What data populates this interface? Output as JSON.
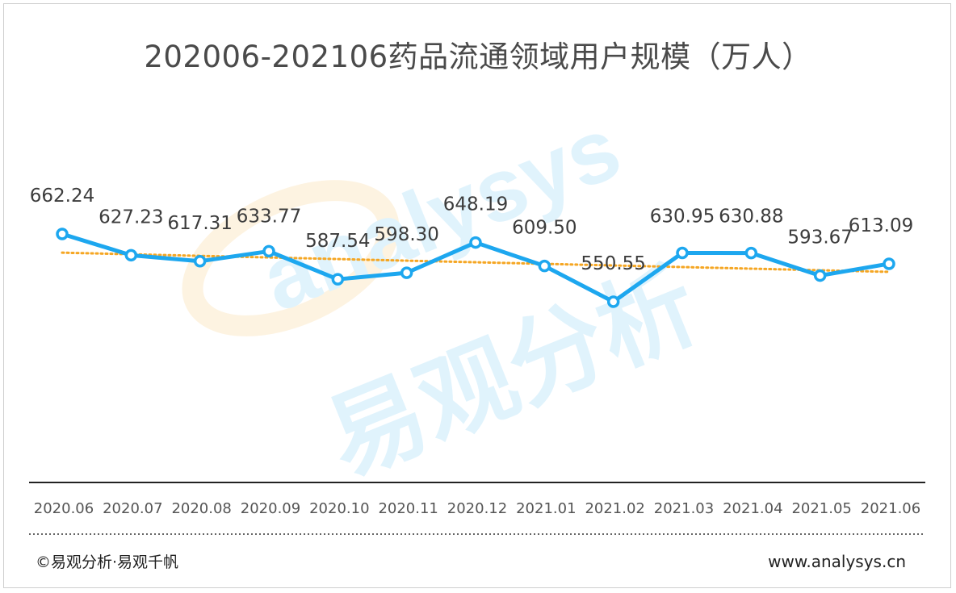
{
  "title": "202006-202106药品流通领域用户规模（万人）",
  "footer": {
    "copyright": "©易观分析·易观千帆",
    "website": "www.analysys.cn"
  },
  "watermark": {
    "logo_text": "analysys",
    "cn_text": "易观分析"
  },
  "colors": {
    "line": "#1da7ef",
    "trend": "#f5a623",
    "text": "#3c3c3c",
    "axis_labels": "#555555"
  },
  "chart_data": {
    "type": "line",
    "categories": [
      "2020.06",
      "2020.07",
      "2020.08",
      "2020.09",
      "2020.10",
      "2020.11",
      "2020.12",
      "2021.01",
      "2021.02",
      "2021.03",
      "2021.04",
      "2021.05",
      "2021.06"
    ],
    "series": [
      {
        "values": [
          662.24,
          627.23,
          617.31,
          633.77,
          587.54,
          598.3,
          648.19,
          609.5,
          550.55,
          630.95,
          630.88,
          593.67,
          613.09
        ]
      }
    ],
    "data_labels": [
      "662.24",
      "627.23",
      "617.31",
      "633.77",
      "587.54",
      "598.30",
      "648.19",
      "609.50",
      "550.55",
      "630.95",
      "630.88",
      "593.67",
      "613.09"
    ],
    "trendline": "linear",
    "xlabel": "",
    "ylabel": "",
    "y_axis_visible": false,
    "grid": false
  }
}
